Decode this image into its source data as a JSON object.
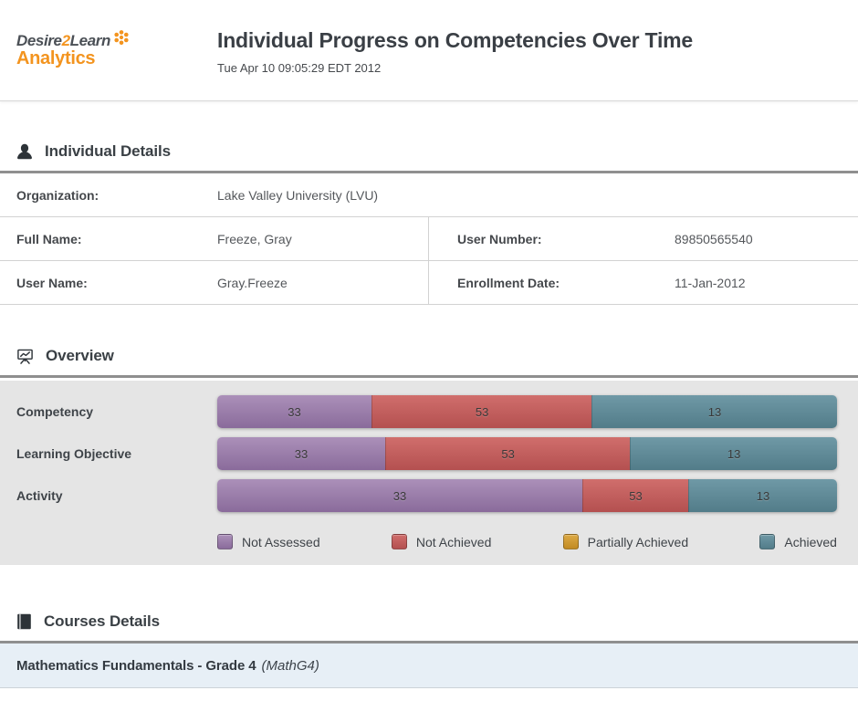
{
  "header": {
    "logo": {
      "part1": "Desire",
      "part2": "2",
      "part3": "Learn",
      "subbrand": "Analytics"
    },
    "title": "Individual Progress on Competencies Over Time",
    "timestamp": "Tue Apr 10 09:05:29 EDT 2012"
  },
  "individual_details": {
    "heading": "Individual Details",
    "organization": {
      "label": "Organization:",
      "value": "Lake Valley University (LVU)"
    },
    "full_name": {
      "label": "Full Name:",
      "value": "Freeze, Gray"
    },
    "user_number": {
      "label": "User Number:",
      "value": "89850565540"
    },
    "user_name": {
      "label": "User Name:",
      "value": "Gray.Freeze"
    },
    "enrollment_date": {
      "label": "Enrollment Date:",
      "value": "11-Jan-2012"
    }
  },
  "overview": {
    "heading": "Overview",
    "colors": {
      "not_assessed": {
        "top": "#ab90b9",
        "bottom": "#8a6b9b"
      },
      "not_achieved": {
        "top": "#d06e6c",
        "bottom": "#b45050"
      },
      "partially_achieved": {
        "top": "#ddaa45",
        "bottom": "#c18a22"
      },
      "achieved": {
        "top": "#6f99a6",
        "bottom": "#527c89"
      }
    },
    "rows": [
      {
        "label": "Competency",
        "segments": [
          {
            "status": "not_assessed",
            "value": "33",
            "width_pct": 24.9
          },
          {
            "status": "not_achieved",
            "value": "53",
            "width_pct": 35.5
          },
          {
            "status": "achieved",
            "value": "13",
            "width_pct": 39.6
          }
        ]
      },
      {
        "label": "Learning Objective",
        "segments": [
          {
            "status": "not_assessed",
            "value": "33",
            "width_pct": 27.1
          },
          {
            "status": "not_achieved",
            "value": "53",
            "width_pct": 39.5
          },
          {
            "status": "achieved",
            "value": "13",
            "width_pct": 33.4
          }
        ]
      },
      {
        "label": "Activity",
        "segments": [
          {
            "status": "not_assessed",
            "value": "33",
            "width_pct": 58.9
          },
          {
            "status": "not_achieved",
            "value": "53",
            "width_pct": 17.1
          },
          {
            "status": "achieved",
            "value": "13",
            "width_pct": 24.0
          }
        ]
      }
    ],
    "legend": [
      {
        "status": "not_assessed",
        "label": "Not Assessed"
      },
      {
        "status": "not_achieved",
        "label": "Not Achieved"
      },
      {
        "status": "partially_achieved",
        "label": "Partially Achieved"
      },
      {
        "status": "achieved",
        "label": "Achieved"
      }
    ]
  },
  "chart_data": {
    "type": "bar",
    "subtype": "horizontal-stacked",
    "title": "Overview",
    "categories": [
      "Competency",
      "Learning Objective",
      "Activity"
    ],
    "series": [
      {
        "name": "Not Assessed",
        "values": [
          33,
          33,
          33
        ]
      },
      {
        "name": "Not Achieved",
        "values": [
          53,
          53,
          53
        ]
      },
      {
        "name": "Partially Achieved",
        "values": [
          0,
          0,
          0
        ]
      },
      {
        "name": "Achieved",
        "values": [
          13,
          13,
          13
        ]
      }
    ],
    "legend_position": "bottom"
  },
  "courses": {
    "heading": "Courses Details",
    "items": [
      {
        "name": "Mathematics Fundamentals - Grade 4",
        "code": "(MathG4)"
      }
    ]
  }
}
